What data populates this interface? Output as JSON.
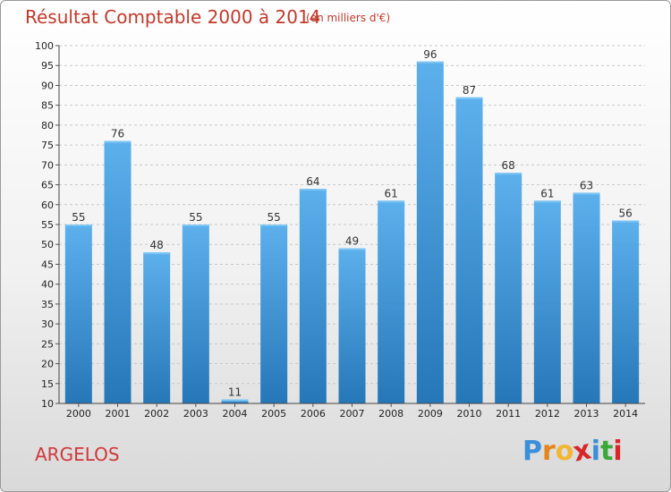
{
  "title": "Résultat Comptable 2000 à 2014",
  "subtitle": "(en milliers d'€)",
  "commune": "ARGELOS",
  "logo": {
    "letters": [
      "P",
      "r",
      "o",
      "x",
      "i",
      "t",
      "i"
    ],
    "colors": [
      "#3b8ed8",
      "#e6841e",
      "#f2b632",
      "#d9262a",
      "#3b8ed8",
      "#3aa838",
      "#d9262a"
    ]
  },
  "chart_data": {
    "type": "bar",
    "categories": [
      "2000",
      "2001",
      "2002",
      "2003",
      "2004",
      "2005",
      "2006",
      "2007",
      "2008",
      "2009",
      "2010",
      "2011",
      "2012",
      "2013",
      "2014"
    ],
    "values": [
      55,
      76,
      48,
      55,
      11,
      55,
      64,
      49,
      61,
      96,
      87,
      68,
      61,
      63,
      56
    ],
    "ylim": [
      10,
      100
    ],
    "yticks": [
      10,
      15,
      20,
      25,
      30,
      35,
      40,
      45,
      50,
      55,
      60,
      65,
      70,
      75,
      80,
      85,
      90,
      95,
      100
    ],
    "grid": true,
    "bar_color": "#4a9fe0"
  }
}
